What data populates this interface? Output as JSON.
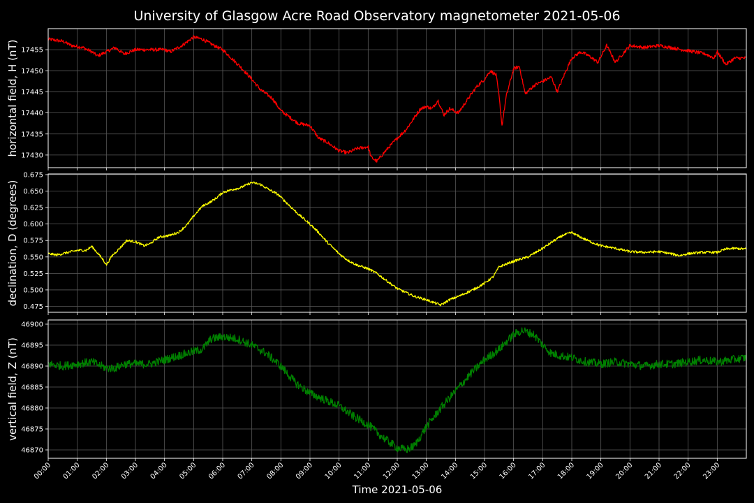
{
  "chart_data": {
    "type": "line",
    "title": "University of Glasgow Acre Road Observatory magnetometer 2021-05-06",
    "xlabel": "Time 2021-05-06",
    "x_ticks": [
      "00:00",
      "01:00",
      "02:00",
      "03:00",
      "04:00",
      "05:00",
      "06:00",
      "07:00",
      "08:00",
      "09:00",
      "10:00",
      "11:00",
      "12:00",
      "13:00",
      "14:00",
      "15:00",
      "16:00",
      "17:00",
      "18:00",
      "19:00",
      "20:00",
      "21:00",
      "22:00",
      "23:00"
    ],
    "x_range_hours": [
      0,
      24
    ],
    "grid": true,
    "panels": [
      {
        "ylabel": "horizontal field, H (nT)",
        "color": "#ff0000",
        "ylim": [
          17427,
          17460
        ],
        "y_ticks": [
          "17430",
          "17435",
          "17440",
          "17445",
          "17450",
          "17455"
        ],
        "y_tick_values": [
          17430,
          17435,
          17440,
          17445,
          17450,
          17455
        ],
        "noise": 0.4,
        "points": [
          [
            0,
            17457.5
          ],
          [
            0.5,
            17457
          ],
          [
            0.8,
            17456
          ],
          [
            1.2,
            17455.5
          ],
          [
            1.5,
            17454.5
          ],
          [
            1.7,
            17453.5
          ],
          [
            2.0,
            17454.5
          ],
          [
            2.3,
            17455.5
          ],
          [
            2.6,
            17454
          ],
          [
            3.0,
            17455
          ],
          [
            3.5,
            17455
          ],
          [
            4.0,
            17455
          ],
          [
            4.2,
            17454.5
          ],
          [
            4.6,
            17456
          ],
          [
            5.0,
            17458
          ],
          [
            5.3,
            17457.5
          ],
          [
            5.7,
            17456
          ],
          [
            6.0,
            17455
          ],
          [
            6.3,
            17453
          ],
          [
            6.6,
            17451
          ],
          [
            7.0,
            17448
          ],
          [
            7.3,
            17445.5
          ],
          [
            7.7,
            17443.5
          ],
          [
            8.0,
            17440.5
          ],
          [
            8.3,
            17439
          ],
          [
            8.6,
            17437.5
          ],
          [
            9.0,
            17437
          ],
          [
            9.3,
            17434
          ],
          [
            9.6,
            17433
          ],
          [
            10.0,
            17431
          ],
          [
            10.3,
            17430.5
          ],
          [
            10.6,
            17431.5
          ],
          [
            11.0,
            17432
          ],
          [
            11.1,
            17429.5
          ],
          [
            11.3,
            17428.5
          ],
          [
            11.6,
            17431
          ],
          [
            12.0,
            17434
          ],
          [
            12.3,
            17436
          ],
          [
            12.6,
            17439
          ],
          [
            12.8,
            17441
          ],
          [
            13.0,
            17441.5
          ],
          [
            13.2,
            17441
          ],
          [
            13.4,
            17443
          ],
          [
            13.6,
            17439.5
          ],
          [
            13.8,
            17441
          ],
          [
            14.1,
            17440
          ],
          [
            14.4,
            17443
          ],
          [
            14.7,
            17446
          ],
          [
            15.0,
            17448
          ],
          [
            15.2,
            17450
          ],
          [
            15.4,
            17449
          ],
          [
            15.5,
            17444
          ],
          [
            15.6,
            17437
          ],
          [
            15.75,
            17444
          ],
          [
            16.0,
            17450.5
          ],
          [
            16.2,
            17451
          ],
          [
            16.4,
            17444.5
          ],
          [
            16.7,
            17446.5
          ],
          [
            17.0,
            17447.5
          ],
          [
            17.3,
            17448.5
          ],
          [
            17.5,
            17445
          ],
          [
            17.8,
            17450
          ],
          [
            18.0,
            17453
          ],
          [
            18.3,
            17454.5
          ],
          [
            18.6,
            17453.5
          ],
          [
            18.9,
            17452
          ],
          [
            19.2,
            17456
          ],
          [
            19.5,
            17452
          ],
          [
            20.0,
            17456
          ],
          [
            20.5,
            17455.5
          ],
          [
            21.0,
            17456
          ],
          [
            21.4,
            17455.5
          ],
          [
            21.8,
            17455
          ],
          [
            22.2,
            17454.5
          ],
          [
            22.6,
            17454
          ],
          [
            22.9,
            17453
          ],
          [
            23.0,
            17454.5
          ],
          [
            23.3,
            17451.5
          ],
          [
            23.6,
            17453
          ],
          [
            24.0,
            17453
          ]
        ]
      },
      {
        "ylabel": "declination, D (degrees)",
        "color": "#ffff00",
        "ylim": [
          0.466,
          0.676
        ],
        "y_ticks": [
          "0.475",
          "0.500",
          "0.525",
          "0.550",
          "0.575",
          "0.600",
          "0.625",
          "0.650",
          "0.675"
        ],
        "y_tick_values": [
          0.475,
          0.5,
          0.525,
          0.55,
          0.575,
          0.6,
          0.625,
          0.65,
          0.675
        ],
        "noise": 0.0018,
        "points": [
          [
            0,
            0.555
          ],
          [
            0.3,
            0.553
          ],
          [
            0.7,
            0.557
          ],
          [
            1.0,
            0.56
          ],
          [
            1.3,
            0.56
          ],
          [
            1.5,
            0.566
          ],
          [
            1.7,
            0.556
          ],
          [
            1.9,
            0.545
          ],
          [
            2.0,
            0.538
          ],
          [
            2.2,
            0.552
          ],
          [
            2.5,
            0.565
          ],
          [
            2.7,
            0.575
          ],
          [
            3.0,
            0.573
          ],
          [
            3.3,
            0.567
          ],
          [
            3.5,
            0.57
          ],
          [
            3.8,
            0.58
          ],
          [
            4.2,
            0.583
          ],
          [
            4.5,
            0.588
          ],
          [
            4.8,
            0.6
          ],
          [
            5.0,
            0.612
          ],
          [
            5.3,
            0.627
          ],
          [
            5.6,
            0.634
          ],
          [
            5.8,
            0.64
          ],
          [
            6.0,
            0.648
          ],
          [
            6.3,
            0.652
          ],
          [
            6.6,
            0.655
          ],
          [
            7.0,
            0.663
          ],
          [
            7.3,
            0.66
          ],
          [
            7.6,
            0.652
          ],
          [
            7.9,
            0.645
          ],
          [
            8.2,
            0.632
          ],
          [
            8.6,
            0.615
          ],
          [
            9.0,
            0.6
          ],
          [
            9.3,
            0.587
          ],
          [
            9.6,
            0.572
          ],
          [
            10.0,
            0.555
          ],
          [
            10.3,
            0.545
          ],
          [
            10.6,
            0.538
          ],
          [
            11.0,
            0.532
          ],
          [
            11.3,
            0.525
          ],
          [
            11.6,
            0.515
          ],
          [
            12.0,
            0.502
          ],
          [
            12.3,
            0.496
          ],
          [
            12.6,
            0.49
          ],
          [
            13.0,
            0.485
          ],
          [
            13.3,
            0.48
          ],
          [
            13.5,
            0.477
          ],
          [
            13.8,
            0.485
          ],
          [
            14.2,
            0.492
          ],
          [
            14.6,
            0.5
          ],
          [
            15.0,
            0.51
          ],
          [
            15.3,
            0.52
          ],
          [
            15.5,
            0.535
          ],
          [
            15.8,
            0.54
          ],
          [
            16.1,
            0.545
          ],
          [
            16.5,
            0.55
          ],
          [
            17.0,
            0.563
          ],
          [
            17.4,
            0.575
          ],
          [
            17.7,
            0.583
          ],
          [
            18.0,
            0.587
          ],
          [
            18.3,
            0.58
          ],
          [
            18.7,
            0.572
          ],
          [
            19.0,
            0.567
          ],
          [
            19.5,
            0.563
          ],
          [
            20.0,
            0.558
          ],
          [
            20.5,
            0.557
          ],
          [
            21.0,
            0.558
          ],
          [
            21.4,
            0.555
          ],
          [
            21.7,
            0.552
          ],
          [
            22.0,
            0.555
          ],
          [
            22.5,
            0.557
          ],
          [
            23.0,
            0.557
          ],
          [
            23.3,
            0.562
          ],
          [
            23.6,
            0.563
          ],
          [
            24.0,
            0.562
          ]
        ]
      },
      {
        "ylabel": "vertical field, Z (nT)",
        "color": "#008000",
        "ylim": [
          46868,
          46901
        ],
        "y_ticks": [
          "46870",
          "46875",
          "46880",
          "46885",
          "46890",
          "46895",
          "46900"
        ],
        "y_tick_values": [
          46870,
          46875,
          46880,
          46885,
          46890,
          46895,
          46900
        ],
        "noise": 1.0,
        "points": [
          [
            0,
            46890.5
          ],
          [
            0.5,
            46890
          ],
          [
            1.0,
            46890.5
          ],
          [
            1.5,
            46891
          ],
          [
            2.0,
            46889.5
          ],
          [
            2.3,
            46889.5
          ],
          [
            2.6,
            46890.5
          ],
          [
            3.0,
            46890.5
          ],
          [
            3.5,
            46890.5
          ],
          [
            4.0,
            46891.5
          ],
          [
            4.5,
            46892.5
          ],
          [
            5.0,
            46893.5
          ],
          [
            5.3,
            46894
          ],
          [
            5.6,
            46896.5
          ],
          [
            6.0,
            46897
          ],
          [
            6.5,
            46896.5
          ],
          [
            7.0,
            46895
          ],
          [
            7.5,
            46893
          ],
          [
            8.0,
            46890
          ],
          [
            8.5,
            46886
          ],
          [
            9.0,
            46883.5
          ],
          [
            9.5,
            46882
          ],
          [
            10.0,
            46880.5
          ],
          [
            10.5,
            46878
          ],
          [
            11.0,
            46876
          ],
          [
            11.5,
            46873
          ],
          [
            12.0,
            46870.5
          ],
          [
            12.3,
            46870
          ],
          [
            12.6,
            46871
          ],
          [
            13.0,
            46875.5
          ],
          [
            13.5,
            46880
          ],
          [
            14.0,
            46884
          ],
          [
            14.5,
            46888
          ],
          [
            15.0,
            46891.5
          ],
          [
            15.5,
            46894
          ],
          [
            16.0,
            46897.5
          ],
          [
            16.3,
            46898.5
          ],
          [
            16.7,
            46897.5
          ],
          [
            17.0,
            46895
          ],
          [
            17.3,
            46893
          ],
          [
            17.6,
            46892.5
          ],
          [
            18.0,
            46892
          ],
          [
            18.5,
            46891
          ],
          [
            19.0,
            46890.5
          ],
          [
            19.5,
            46891
          ],
          [
            20.0,
            46890.5
          ],
          [
            20.5,
            46890
          ],
          [
            21.0,
            46890.5
          ],
          [
            21.5,
            46890.5
          ],
          [
            22.0,
            46891
          ],
          [
            22.5,
            46891.5
          ],
          [
            23.0,
            46891
          ],
          [
            23.5,
            46891.5
          ],
          [
            24.0,
            46892
          ]
        ]
      }
    ]
  }
}
